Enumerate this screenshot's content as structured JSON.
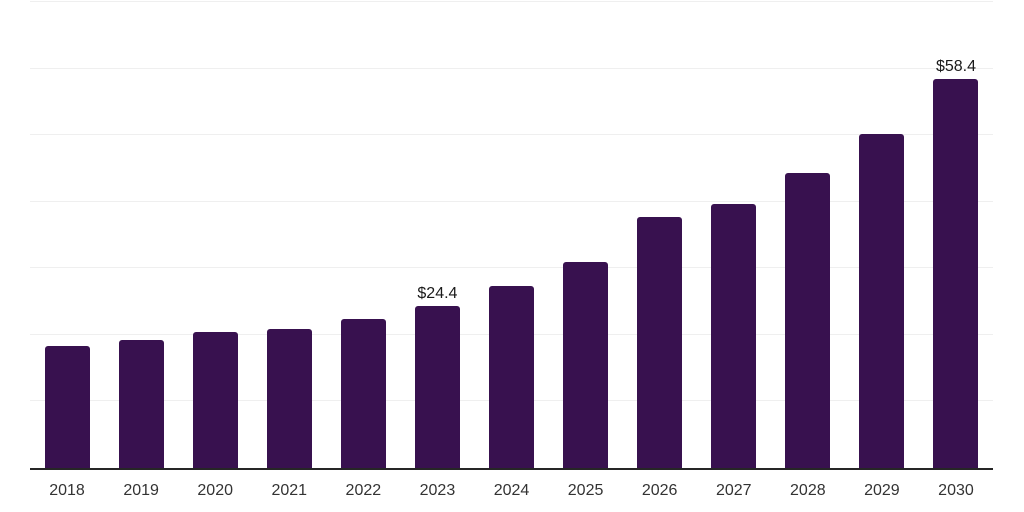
{
  "chart_data": {
    "type": "bar",
    "title": "",
    "xlabel": "",
    "ylabel": "",
    "categories": [
      "2018",
      "2019",
      "2020",
      "2021",
      "2022",
      "2023",
      "2024",
      "2025",
      "2026",
      "2027",
      "2028",
      "2029",
      "2030"
    ],
    "values": [
      18.3,
      19.2,
      20.5,
      20.9,
      22.4,
      24.4,
      27.4,
      30.9,
      37.7,
      39.7,
      44.3,
      50.2,
      58.4
    ],
    "data_labels": [
      "",
      "",
      "",
      "",
      "",
      "$24.4",
      "",
      "",
      "",
      "",
      "",
      "",
      "$58.4"
    ],
    "ylim": [
      0,
      70
    ],
    "gridline_step": 10,
    "grid": true,
    "legend": false,
    "y_axis_labels_visible": false,
    "colors": {
      "bar": "#38114F",
      "gridline": "#efefef",
      "axis_line": "#262626",
      "tick_label": "#333333",
      "data_label": "#1a1a1a",
      "background": "#ffffff"
    }
  }
}
